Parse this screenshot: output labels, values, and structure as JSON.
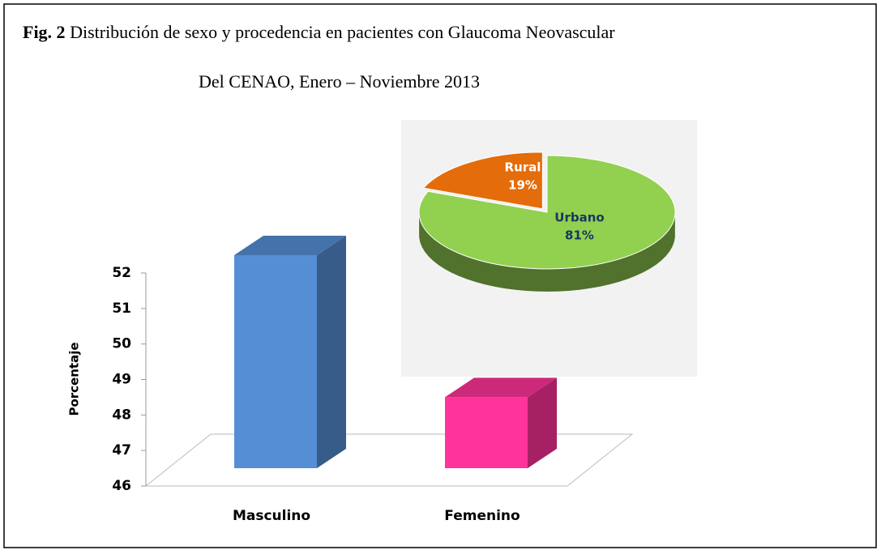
{
  "fig_label": "Fig. 2",
  "title": "Distribución de sexo y procedencia en pacientes con Glaucoma Neovascular",
  "subtitle": "Del CENAO, Enero – Noviembre 2013",
  "chart_data": [
    {
      "type": "bar",
      "categories": [
        "Masculino",
        "Femenino"
      ],
      "values": [
        52,
        48
      ],
      "colors": [
        "#558ed5",
        "#ff3399"
      ],
      "ylabel": "Porcentaje",
      "ylim": [
        46,
        52
      ],
      "yticks": [
        46,
        47,
        48,
        49,
        50,
        51,
        52
      ]
    },
    {
      "type": "pie",
      "categories": [
        "Urbano",
        "Rural"
      ],
      "values": [
        81,
        19
      ],
      "value_labels": [
        "81%",
        "19%"
      ],
      "colors": [
        "#92d050",
        "#e46c0a"
      ]
    }
  ]
}
